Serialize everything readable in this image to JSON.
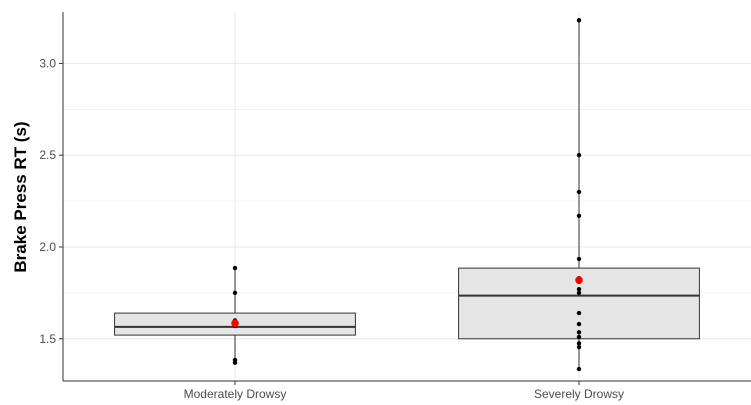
{
  "chart_data": {
    "type": "box",
    "title": "",
    "xlabel": "",
    "ylabel": "Brake Press RT (s)",
    "ylim": [
      1.27,
      3.28
    ],
    "yticks": [
      1.5,
      2.0,
      2.5,
      3.0
    ],
    "ytick_labels": [
      "1.5",
      "2.0",
      "2.5",
      "3.0"
    ],
    "grid": true,
    "categories": [
      "Moderately Drowsy",
      "Severely Drowsy"
    ],
    "boxes": [
      {
        "category": "Moderately Drowsy",
        "q1": 1.52,
        "median": 1.565,
        "q3": 1.64,
        "whisker_low": 1.37,
        "whisker_high": 1.885,
        "mean": 1.585,
        "points": [
          1.885,
          1.75,
          1.6,
          1.59,
          1.58,
          1.57,
          1.385,
          1.37
        ]
      },
      {
        "category": "Severely Drowsy",
        "q1": 1.5,
        "median": 1.735,
        "q3": 1.885,
        "whisker_low": 1.335,
        "whisker_high": 3.235,
        "mean": 1.82,
        "points": [
          3.235,
          2.5,
          2.3,
          2.17,
          1.935,
          1.83,
          1.81,
          1.77,
          1.75,
          1.64,
          1.58,
          1.535,
          1.51,
          1.475,
          1.455,
          1.335
        ]
      }
    ],
    "colors": {
      "box_fill": "#e5e5e5",
      "box_stroke": "#333333",
      "point": "#000000",
      "mean": "#ff0000",
      "grid": "#ebebeb"
    }
  }
}
